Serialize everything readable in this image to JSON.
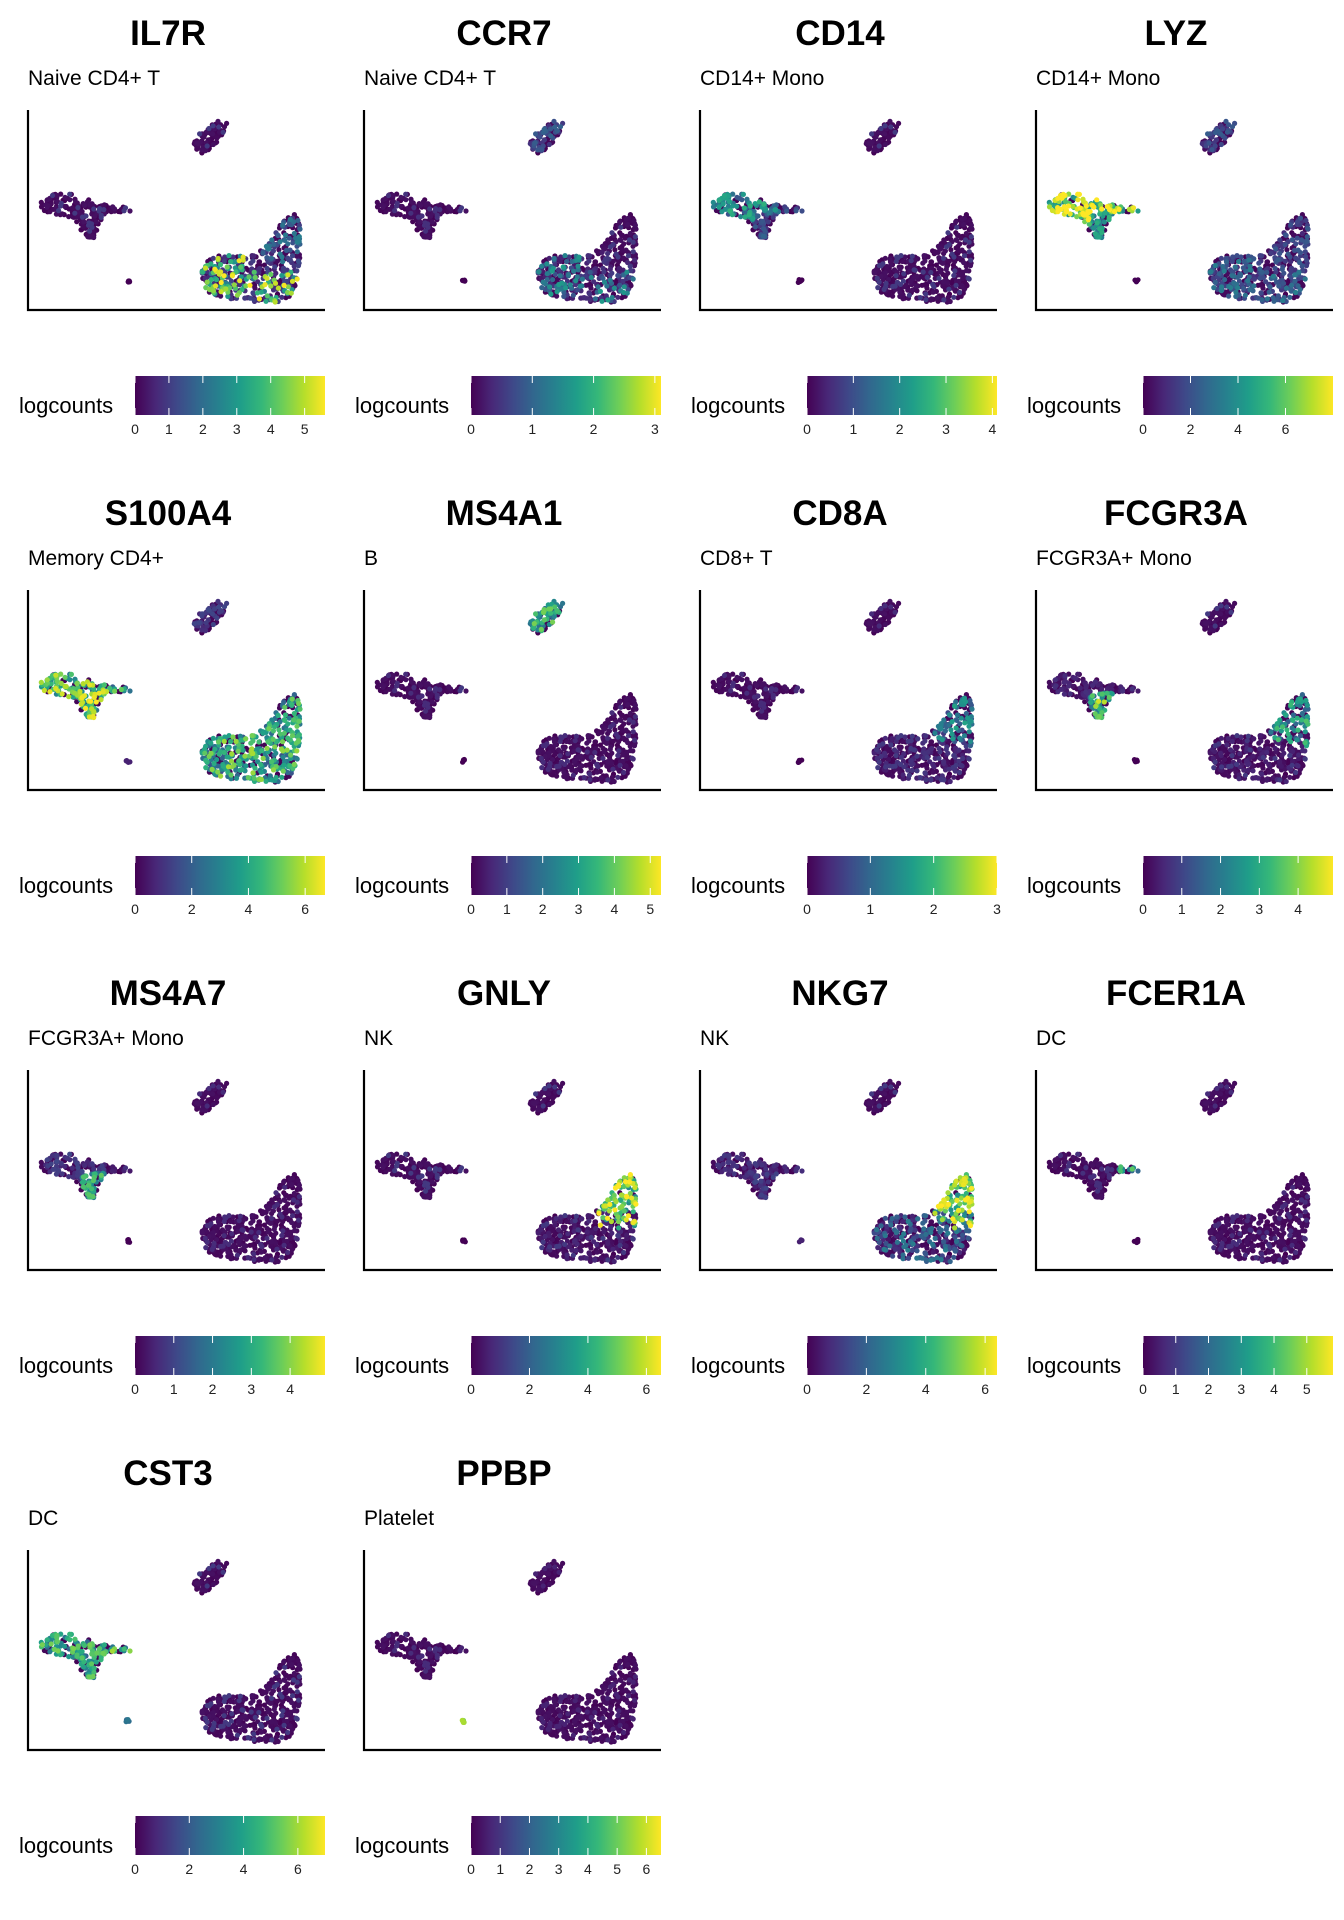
{
  "legend_title": "logcounts",
  "colormap": [
    "#440154",
    "#482878",
    "#3e4989",
    "#31688e",
    "#26828e",
    "#1f9e89",
    "#35b779",
    "#6ece58",
    "#b5de2b",
    "#fde725"
  ],
  "axis_color": "#000000",
  "chart_data": [
    {
      "type": "scatter",
      "gene": "IL7R",
      "cell_type": "Naive CD4+ T",
      "color_max": 5.6,
      "ticks": [
        0,
        1,
        2,
        3,
        4,
        5
      ],
      "expression": {
        "naive_t": 0.7,
        "memory_t": 0.15,
        "nk": 0.3,
        "cd14": 0.05,
        "fcgr3a": 0.05,
        "dc": 0.05,
        "b": 0.05,
        "platelet": 0.0
      }
    },
    {
      "type": "scatter",
      "gene": "CCR7",
      "cell_type": "Naive CD4+ T",
      "color_max": 3.1,
      "ticks": [
        0,
        1,
        2,
        3
      ],
      "expression": {
        "naive_t": 0.38,
        "memory_t": 0.12,
        "nk": 0.05,
        "cd14": 0.03,
        "fcgr3a": 0.03,
        "dc": 0.05,
        "b": 0.22,
        "platelet": 0.0
      }
    },
    {
      "type": "scatter",
      "gene": "CD14",
      "cell_type": "CD14+ Mono",
      "color_max": 4.1,
      "ticks": [
        0,
        1,
        2,
        3,
        4
      ],
      "expression": {
        "naive_t": 0.05,
        "memory_t": 0.05,
        "nk": 0.05,
        "cd14": 0.45,
        "fcgr3a": 0.22,
        "dc": 0.2,
        "b": 0.05,
        "platelet": 0.0
      }
    },
    {
      "type": "scatter",
      "gene": "LYZ",
      "cell_type": "CD14+ Mono",
      "color_max": 8.0,
      "ticks": [
        0,
        2,
        4,
        6
      ],
      "expression": {
        "naive_t": 0.3,
        "memory_t": 0.22,
        "nk": 0.2,
        "cd14": 0.82,
        "fcgr3a": 0.45,
        "dc": 0.75,
        "b": 0.2,
        "platelet": 0.0
      }
    },
    {
      "type": "scatter",
      "gene": "S100A4",
      "cell_type": "Memory CD4+",
      "color_max": 6.7,
      "ticks": [
        0,
        2,
        4,
        6
      ],
      "expression": {
        "naive_t": 0.45,
        "memory_t": 0.6,
        "nk": 0.55,
        "cd14": 0.68,
        "fcgr3a": 0.7,
        "dc": 0.55,
        "b": 0.15,
        "platelet": 0.1
      }
    },
    {
      "type": "scatter",
      "gene": "MS4A1",
      "cell_type": "B",
      "color_max": 5.3,
      "ticks": [
        0,
        1,
        2,
        3,
        4,
        5
      ],
      "expression": {
        "naive_t": 0.02,
        "memory_t": 0.02,
        "nk": 0.02,
        "cd14": 0.02,
        "fcgr3a": 0.02,
        "dc": 0.05,
        "b": 0.55,
        "platelet": 0.0
      }
    },
    {
      "type": "scatter",
      "gene": "CD8A",
      "cell_type": "CD8+ T",
      "color_max": 3.0,
      "ticks": [
        0,
        1,
        2,
        3
      ],
      "expression": {
        "naive_t": 0.05,
        "memory_t": 0.12,
        "nk": 0.4,
        "cd14": 0.02,
        "fcgr3a": 0.02,
        "dc": 0.02,
        "b": 0.02,
        "platelet": 0.0
      }
    },
    {
      "type": "scatter",
      "gene": "FCGR3A",
      "cell_type": "FCGR3A+ Mono",
      "color_max": 4.9,
      "ticks": [
        0,
        1,
        2,
        3,
        4
      ],
      "expression": {
        "naive_t": 0.05,
        "memory_t": 0.08,
        "nk": 0.5,
        "cd14": 0.1,
        "fcgr3a": 0.65,
        "dc": 0.1,
        "b": 0.05,
        "platelet": 0.0
      }
    },
    {
      "type": "scatter",
      "gene": "MS4A7",
      "cell_type": "FCGR3A+ Mono",
      "color_max": 4.9,
      "ticks": [
        0,
        1,
        2,
        3,
        4
      ],
      "expression": {
        "naive_t": 0.02,
        "memory_t": 0.02,
        "nk": 0.02,
        "cd14": 0.15,
        "fcgr3a": 0.55,
        "dc": 0.1,
        "b": 0.02,
        "platelet": 0.0
      }
    },
    {
      "type": "scatter",
      "gene": "GNLY",
      "cell_type": "NK",
      "color_max": 6.5,
      "ticks": [
        0,
        2,
        4,
        6
      ],
      "expression": {
        "naive_t": 0.05,
        "memory_t": 0.08,
        "nk": 0.78,
        "cd14": 0.05,
        "fcgr3a": 0.05,
        "dc": 0.05,
        "b": 0.05,
        "platelet": 0.0
      }
    },
    {
      "type": "scatter",
      "gene": "NKG7",
      "cell_type": "NK",
      "color_max": 6.4,
      "ticks": [
        0,
        2,
        4,
        6
      ],
      "expression": {
        "naive_t": 0.1,
        "memory_t": 0.3,
        "nk": 0.75,
        "cd14": 0.12,
        "fcgr3a": 0.15,
        "dc": 0.1,
        "b": 0.05,
        "platelet": 0.1
      }
    },
    {
      "type": "scatter",
      "gene": "FCER1A",
      "cell_type": "DC",
      "color_max": 5.8,
      "ticks": [
        0,
        1,
        2,
        3,
        4,
        5
      ],
      "expression": {
        "naive_t": 0.02,
        "memory_t": 0.02,
        "nk": 0.02,
        "cd14": 0.03,
        "fcgr3a": 0.03,
        "dc": 0.55,
        "b": 0.02,
        "platelet": 0.0
      }
    },
    {
      "type": "scatter",
      "gene": "CST3",
      "cell_type": "DC",
      "color_max": 7.0,
      "ticks": [
        0,
        2,
        4,
        6
      ],
      "expression": {
        "naive_t": 0.05,
        "memory_t": 0.05,
        "nk": 0.05,
        "cd14": 0.55,
        "fcgr3a": 0.55,
        "dc": 0.6,
        "b": 0.05,
        "platelet": 0.4
      }
    },
    {
      "type": "scatter",
      "gene": "PPBP",
      "cell_type": "Platelet",
      "color_max": 6.5,
      "ticks": [
        0,
        1,
        2,
        3,
        4,
        5,
        6
      ],
      "expression": {
        "naive_t": 0.0,
        "memory_t": 0.0,
        "nk": 0.0,
        "cd14": 0.02,
        "fcgr3a": 0.02,
        "dc": 0.0,
        "b": 0.0,
        "platelet": 0.95
      }
    }
  ]
}
